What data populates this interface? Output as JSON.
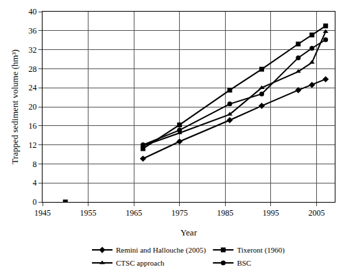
{
  "chart_data": {
    "type": "line",
    "x_label": "Year",
    "y_label": "Trapped sediment volume (hm³)",
    "xlim": [
      1945,
      2009
    ],
    "xticks": [
      1945,
      1955,
      1965,
      1975,
      1985,
      1995,
      2005
    ],
    "ylim": [
      0,
      40
    ],
    "yticks": [
      0,
      4,
      8,
      12,
      16,
      20,
      24,
      28,
      32,
      36,
      40
    ],
    "grid": true,
    "legend": "bottom",
    "series": [
      {
        "name": "Remini and Hallouche (2005)",
        "color": "#000000",
        "marker": "diamond",
        "line_style": "solid",
        "x": [
          1967,
          1975,
          1986,
          1993,
          2001,
          2004,
          2007
        ],
        "values": [
          9.1,
          12.7,
          17.2,
          20.2,
          23.5,
          24.6,
          25.8
        ]
      },
      {
        "name": "Tixeront (1960)",
        "color": "#000000",
        "marker": "square",
        "line_style": "solid",
        "x": [
          1950,
          null,
          1967,
          1975,
          1986,
          1993,
          2001,
          2004,
          2007
        ],
        "values": [
          0,
          null,
          11.2,
          16.2,
          23.5,
          27.9,
          33.2,
          35.1,
          37.0
        ]
      },
      {
        "name": "CTSC approach",
        "color": "#000000",
        "marker": "triangle",
        "line_style": "solid",
        "x": [
          1967,
          1975,
          1986,
          1993,
          2001,
          2004,
          2007
        ],
        "values": [
          11.8,
          14.5,
          18.4,
          24.0,
          27.4,
          29.3,
          35.8
        ]
      },
      {
        "name": "BSC",
        "color": "#000000",
        "marker": "circle",
        "line_style": "solid",
        "x": [
          1967,
          1975,
          1986,
          1993,
          2001,
          2004,
          2007
        ],
        "values": [
          12.0,
          15.1,
          20.6,
          22.7,
          30.3,
          32.3,
          34.1
        ]
      }
    ]
  }
}
